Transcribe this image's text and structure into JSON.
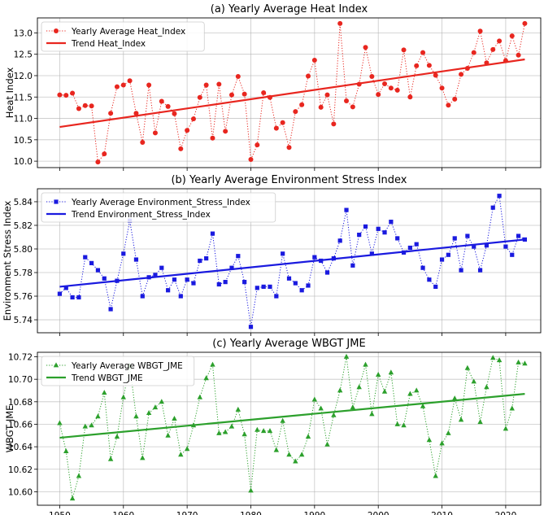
{
  "chart_data": [
    {
      "type": "line",
      "title": "(a) Yearly Average Heat Index",
      "xlabel": "",
      "ylabel": "Heat Index",
      "xlim": [
        1946.5,
        2025.5
      ],
      "ylim": [
        9.85,
        13.35
      ],
      "yticks": [
        "10.0",
        "10.5",
        "11.0",
        "11.5",
        "12.0",
        "12.5",
        "13.0"
      ],
      "xticks": [
        "1950",
        "1960",
        "1970",
        "1980",
        "1990",
        "2000",
        "2010",
        "2020"
      ],
      "show_xticklabels": false,
      "grid": true,
      "legend_position": "top-left",
      "series": [
        {
          "name": "Yearly Average Heat_Index",
          "color": "#e8261f",
          "marker": "circle",
          "style": "dotted",
          "x": [
            1950,
            1951,
            1952,
            1953,
            1954,
            1955,
            1956,
            1957,
            1958,
            1959,
            1960,
            1961,
            1962,
            1963,
            1964,
            1965,
            1966,
            1967,
            1968,
            1969,
            1970,
            1971,
            1972,
            1973,
            1974,
            1975,
            1976,
            1977,
            1978,
            1979,
            1980,
            1981,
            1982,
            1983,
            1984,
            1985,
            1986,
            1987,
            1988,
            1989,
            1990,
            1991,
            1992,
            1993,
            1994,
            1995,
            1996,
            1997,
            1998,
            1999,
            2000,
            2001,
            2002,
            2003,
            2004,
            2005,
            2006,
            2007,
            2008,
            2009,
            2010,
            2011,
            2012,
            2013,
            2014,
            2015,
            2016,
            2017,
            2018,
            2019,
            2020,
            2021,
            2022,
            2023
          ],
          "y": [
            11.55,
            11.54,
            11.59,
            11.23,
            11.3,
            11.29,
            9.98,
            10.17,
            11.12,
            11.74,
            11.78,
            11.88,
            11.12,
            10.44,
            11.78,
            10.66,
            11.4,
            11.28,
            11.11,
            10.29,
            10.72,
            10.99,
            11.49,
            11.78,
            10.54,
            11.8,
            10.7,
            11.55,
            11.98,
            11.57,
            10.04,
            10.38,
            11.6,
            11.49,
            10.77,
            10.9,
            10.32,
            11.16,
            11.32,
            11.99,
            12.36,
            11.26,
            11.55,
            10.87,
            13.22,
            11.41,
            11.27,
            11.8,
            12.66,
            11.98,
            11.56,
            11.81,
            11.71,
            11.66,
            12.6,
            11.5,
            12.23,
            12.54,
            12.24,
            12.01,
            11.71,
            11.31,
            11.45,
            12.03,
            12.17,
            12.54,
            13.04,
            12.3,
            12.61,
            12.81,
            12.35,
            12.93,
            12.48,
            13.22
          ]
        },
        {
          "name": "Trend Heat_Index",
          "color": "#e8261f",
          "style": "solid",
          "x": [
            1950,
            2023
          ],
          "y": [
            10.8,
            12.38
          ]
        }
      ]
    },
    {
      "type": "line",
      "title": "(b) Yearly Average Environment Stress Index",
      "xlabel": "",
      "ylabel": "Environment Stress Index",
      "xlim": [
        1946.5,
        2025.5
      ],
      "ylim": [
        5.729,
        5.851
      ],
      "yticks": [
        "5.74",
        "5.76",
        "5.78",
        "5.80",
        "5.82",
        "5.84"
      ],
      "xticks": [
        "1950",
        "1960",
        "1970",
        "1980",
        "1990",
        "2000",
        "2010",
        "2020"
      ],
      "show_xticklabels": false,
      "grid": true,
      "legend_position": "top-left",
      "series": [
        {
          "name": "Yearly Average Environment_Stress_Index",
          "color": "#1a1adf",
          "marker": "square",
          "style": "dotted",
          "x": [
            1950,
            1951,
            1952,
            1953,
            1954,
            1955,
            1956,
            1957,
            1958,
            1959,
            1960,
            1961,
            1962,
            1963,
            1964,
            1965,
            1966,
            1967,
            1968,
            1969,
            1970,
            1971,
            1972,
            1973,
            1974,
            1975,
            1976,
            1977,
            1978,
            1979,
            1980,
            1981,
            1982,
            1983,
            1984,
            1985,
            1986,
            1987,
            1988,
            1989,
            1990,
            1991,
            1992,
            1993,
            1994,
            1995,
            1996,
            1997,
            1998,
            1999,
            2000,
            2001,
            2002,
            2003,
            2004,
            2005,
            2006,
            2007,
            2008,
            2009,
            2010,
            2011,
            2012,
            2013,
            2014,
            2015,
            2016,
            2017,
            2018,
            2019,
            2020,
            2021,
            2022,
            2023
          ],
          "y": [
            5.762,
            5.767,
            5.759,
            5.759,
            5.793,
            5.788,
            5.782,
            5.775,
            5.749,
            5.773,
            5.796,
            5.824,
            5.791,
            5.76,
            5.776,
            5.778,
            5.784,
            5.765,
            5.774,
            5.76,
            5.774,
            5.771,
            5.79,
            5.792,
            5.813,
            5.77,
            5.772,
            5.784,
            5.794,
            5.772,
            5.734,
            5.767,
            5.768,
            5.768,
            5.76,
            5.796,
            5.775,
            5.771,
            5.765,
            5.769,
            5.793,
            5.79,
            5.78,
            5.792,
            5.807,
            5.833,
            5.786,
            5.812,
            5.819,
            5.796,
            5.817,
            5.814,
            5.823,
            5.809,
            5.797,
            5.801,
            5.804,
            5.784,
            5.774,
            5.768,
            5.791,
            5.795,
            5.809,
            5.782,
            5.811,
            5.802,
            5.782,
            5.803,
            5.835,
            5.845,
            5.802,
            5.795,
            5.811,
            5.808
          ]
        },
        {
          "name": "Trend Environment_Stress_Index",
          "color": "#1a1adf",
          "style": "solid",
          "x": [
            1950,
            2023
          ],
          "y": [
            5.768,
            5.808
          ]
        }
      ]
    },
    {
      "type": "line",
      "title": "(c) Yearly Average WBGT JME",
      "xlabel": "",
      "ylabel": "WBGT JME",
      "xlim": [
        1946.5,
        2025.5
      ],
      "ylim": [
        10.588,
        10.724
      ],
      "yticks": [
        "10.60",
        "10.62",
        "10.64",
        "10.66",
        "10.68",
        "10.70",
        "10.72"
      ],
      "xticks": [
        "1950",
        "1960",
        "1970",
        "1980",
        "1990",
        "2000",
        "2010",
        "2020"
      ],
      "show_xticklabels": true,
      "grid": true,
      "legend_position": "top-left",
      "series": [
        {
          "name": "Yearly Average WBGT_JME",
          "color": "#2ca02c",
          "marker": "triangle",
          "style": "dotted",
          "x": [
            1950,
            1951,
            1952,
            1953,
            1954,
            1955,
            1956,
            1957,
            1958,
            1959,
            1960,
            1961,
            1962,
            1963,
            1964,
            1965,
            1966,
            1967,
            1968,
            1969,
            1970,
            1971,
            1972,
            1973,
            1974,
            1975,
            1976,
            1977,
            1978,
            1979,
            1980,
            1981,
            1982,
            1983,
            1984,
            1985,
            1986,
            1987,
            1988,
            1989,
            1990,
            1991,
            1992,
            1993,
            1994,
            1995,
            1996,
            1997,
            1998,
            1999,
            2000,
            2001,
            2002,
            2003,
            2004,
            2005,
            2006,
            2007,
            2008,
            2009,
            2010,
            2011,
            2012,
            2013,
            2014,
            2015,
            2016,
            2017,
            2018,
            2019,
            2020,
            2021,
            2022,
            2023
          ],
          "y": [
            10.661,
            10.636,
            10.594,
            10.614,
            10.658,
            10.659,
            10.667,
            10.688,
            10.629,
            10.649,
            10.684,
            10.712,
            10.667,
            10.63,
            10.67,
            10.675,
            10.68,
            10.65,
            10.665,
            10.633,
            10.638,
            10.659,
            10.684,
            10.701,
            10.713,
            10.652,
            10.653,
            10.658,
            10.673,
            10.651,
            10.601,
            10.655,
            10.654,
            10.654,
            10.637,
            10.663,
            10.633,
            10.627,
            10.633,
            10.649,
            10.682,
            10.674,
            10.642,
            10.668,
            10.69,
            10.72,
            10.675,
            10.693,
            10.713,
            10.669,
            10.704,
            10.689,
            10.706,
            10.66,
            10.659,
            10.687,
            10.69,
            10.676,
            10.646,
            10.614,
            10.643,
            10.652,
            10.683,
            10.664,
            10.71,
            10.698,
            10.662,
            10.693,
            10.719,
            10.717,
            10.656,
            10.674,
            10.715,
            10.714
          ]
        },
        {
          "name": "Trend WBGT_JME",
          "color": "#2ca02c",
          "style": "solid",
          "x": [
            1950,
            2023
          ],
          "y": [
            10.648,
            10.687
          ]
        }
      ]
    }
  ]
}
